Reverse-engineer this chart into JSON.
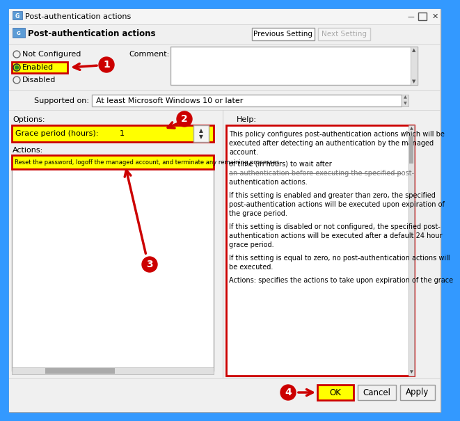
{
  "title": "Post-authentication actions",
  "subtitle": "Post-authentication actions",
  "annotation_color": "#cc0000",
  "highlight_yellow": "#ffff00",
  "red_border": "#cc0000",
  "dialog_bg": "#f0f0f0",
  "white": "#ffffff",
  "light_gray": "#e8e8e8",
  "mid_gray": "#cccccc",
  "dark_gray": "#555555",
  "text_black": "#000000",
  "blue_border": "#3399ff",
  "green_dot": "#228B22",
  "help_lines_top": [
    "This policy configures post-authentication actions which will be",
    "executed after detecting an authentication by the managed",
    "account."
  ],
  "help_line_time": "of time (in hours) to wait after",
  "help_line_strike1": "an authentication before executing",
  "help_line_strike2": " the specified post-",
  "help_line_auth": "authentication actions.",
  "help_paragraphs": [
    "If this setting is enabled and greater than zero, the specified\npost-authentication actions will be executed upon expiration of\nthe grace period.",
    "If this setting is disabled or not configured, the specified post-\nauthentication actions will be executed after a default 24 hour\ngrace period.",
    "If this setting is equal to zero, no post-authentication actions will\nbe executed.",
    "Actions: specifies the actions to take upon expiration of the grace"
  ],
  "grace_text": "Grace period (hours):",
  "grace_value": "1",
  "actions_label": "Actions:",
  "actions_text": "Reset the password, logoff the managed account, and terminate any remaining processes",
  "supported_text": "At least Microsoft Windows 10 or later",
  "comment_label": "Comment:",
  "not_configured": "Not Configured",
  "enabled_text": "Enabled",
  "disabled_text": "Disabled",
  "supported_label": "Supported on:",
  "options_label": "Options:",
  "help_label": "Help:",
  "prev_btn": "Previous Setting",
  "next_btn": "Next Setting",
  "ok_btn": "OK",
  "cancel_btn": "Cancel",
  "apply_btn": "Apply"
}
